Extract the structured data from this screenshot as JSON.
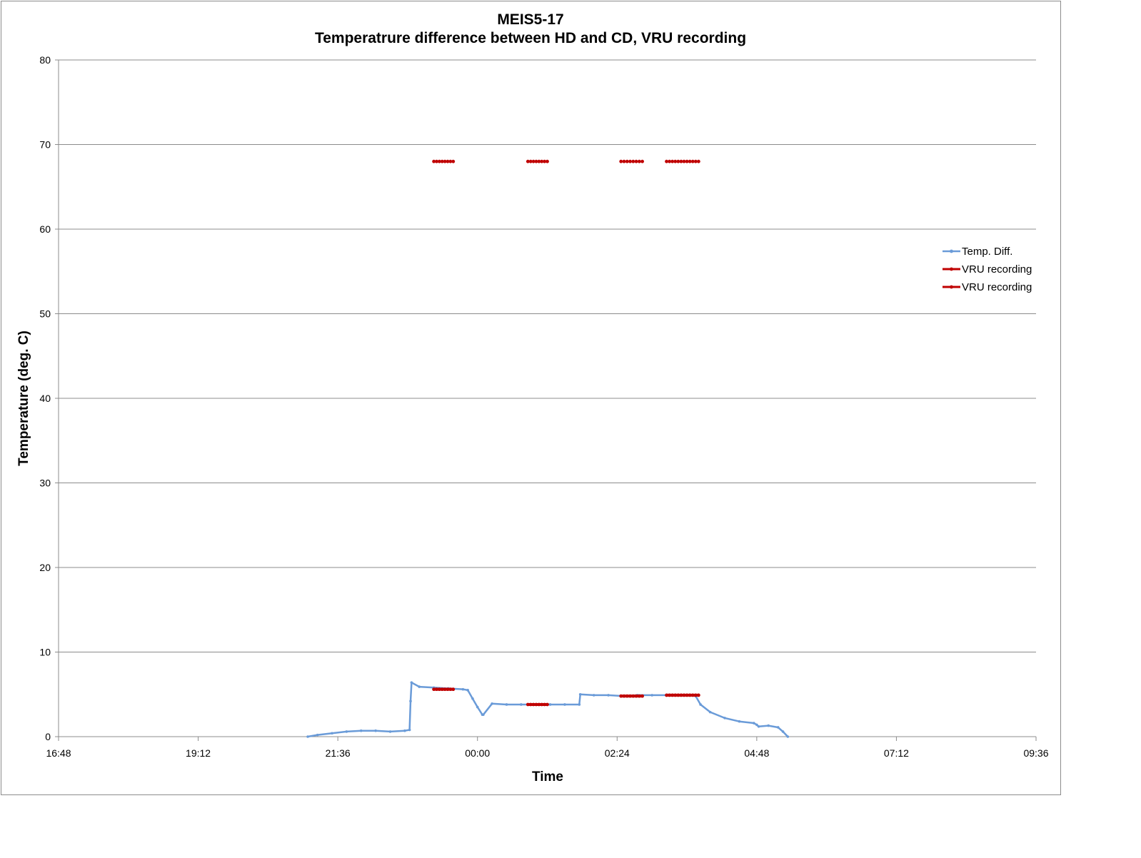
{
  "chart_data": {
    "type": "line",
    "title": "MEIS5-17",
    "subtitle": "Temperatrure difference between HD and CD, VRU recording",
    "xlabel": "Time",
    "ylabel": "Temperature (deg. C)",
    "ylim": [
      0,
      80
    ],
    "xlim": [
      "16:48",
      "09:36"
    ],
    "y_ticks": [
      "0",
      "10",
      "20",
      "30",
      "40",
      "50",
      "60",
      "70",
      "80"
    ],
    "x_ticks": [
      "16:48",
      "19:12",
      "21:36",
      "00:00",
      "02:24",
      "04:48",
      "07:12",
      "09:36"
    ],
    "grid": "horizontal",
    "legend_position": "right",
    "series": [
      {
        "name": "Temp. Diff.",
        "color": "#6a9bd8",
        "x": [
          "21:05",
          "21:15",
          "21:30",
          "21:45",
          "22:00",
          "22:15",
          "22:30",
          "22:45",
          "22:50",
          "22:51",
          "22:52",
          "23:00",
          "23:15",
          "23:30",
          "23:45",
          "23:50",
          "23:55",
          "24:00",
          "00:05",
          "00:06",
          "00:15",
          "00:30",
          "00:45",
          "01:00",
          "01:15",
          "01:30",
          "01:45",
          "01:46",
          "02:00",
          "02:15",
          "02:30",
          "02:45",
          "03:00",
          "03:15",
          "03:30",
          "03:40",
          "03:45",
          "03:50",
          "04:00",
          "04:15",
          "04:30",
          "04:45",
          "04:48",
          "04:50",
          "05:00",
          "05:10",
          "05:15",
          "05:20"
        ],
        "values": [
          0.0,
          0.2,
          0.4,
          0.6,
          0.7,
          0.7,
          0.6,
          0.7,
          0.8,
          4.2,
          6.4,
          5.9,
          5.8,
          5.7,
          5.6,
          5.5,
          4.5,
          3.5,
          2.6,
          2.6,
          3.9,
          3.8,
          3.8,
          3.8,
          3.8,
          3.8,
          3.8,
          5.0,
          4.9,
          4.9,
          4.8,
          4.9,
          4.9,
          4.9,
          4.9,
          4.9,
          4.8,
          3.8,
          2.9,
          2.2,
          1.8,
          1.6,
          1.4,
          1.2,
          1.3,
          1.1,
          0.6,
          0.0
        ]
      },
      {
        "name": "VRU recording",
        "color": "#c00000",
        "segments": [
          {
            "x": [
              "23:15",
              "23:35"
            ],
            "y": 68
          },
          {
            "x": [
              "00:52",
              "01:12"
            ],
            "y": 68
          },
          {
            "x": [
              "02:28",
              "02:50"
            ],
            "y": 68
          },
          {
            "x": [
              "03:15",
              "03:48"
            ],
            "y": 68
          }
        ]
      },
      {
        "name": "VRU recording",
        "color": "#c00000",
        "segments": [
          {
            "x": [
              "23:15",
              "23:35"
            ],
            "y": 5.6
          },
          {
            "x": [
              "00:52",
              "01:12"
            ],
            "y": 3.8
          },
          {
            "x": [
              "02:28",
              "02:50"
            ],
            "y": 4.8
          },
          {
            "x": [
              "03:15",
              "03:48"
            ],
            "y": 4.9
          }
        ]
      }
    ]
  }
}
